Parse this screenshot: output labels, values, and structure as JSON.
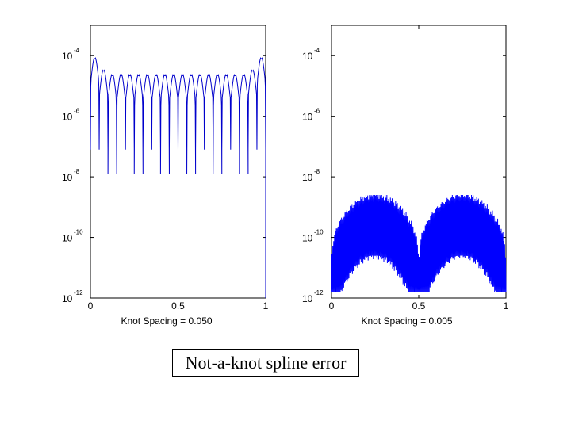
{
  "caption": "Not-a-knot spline error",
  "chart_data": [
    {
      "type": "line",
      "title": "",
      "xlabel": "Knot Spacing = 0.050",
      "ylabel": "",
      "yscale": "log",
      "xlim": [
        0,
        1
      ],
      "ylim": [
        1e-12,
        0.001
      ],
      "xticks": [
        0,
        0.5,
        1
      ],
      "xtick_labels": [
        "0",
        "0.5",
        "1"
      ],
      "yticks": [
        0.0001,
        1e-06,
        1e-08,
        1e-10,
        1e-12
      ],
      "ytick_labels": [
        {
          "base": "10",
          "exp": "-4"
        },
        {
          "base": "10",
          "exp": "-6"
        },
        {
          "base": "10",
          "exp": "-8"
        },
        {
          "base": "10",
          "exp": "-10"
        },
        {
          "base": "10",
          "exp": "-12"
        }
      ],
      "knot_spacing": 0.05,
      "series": [
        {
          "name": "error",
          "color": "#0000cc",
          "description": "error arches between knots, zero at each knot",
          "arch_peak_log10": {
            "ends": -4.05,
            "interior": -4.6
          },
          "dip_log10": {
            "base": -7.1,
            "deep": -7.9
          }
        }
      ]
    },
    {
      "type": "line",
      "title": "",
      "xlabel": "Knot Spacing = 0.005",
      "ylabel": "",
      "yscale": "log",
      "xlim": [
        0,
        1
      ],
      "ylim": [
        1e-12,
        0.001
      ],
      "xticks": [
        0,
        0.5,
        1
      ],
      "xtick_labels": [
        "0",
        "0.5",
        "1"
      ],
      "yticks": [
        0.0001,
        1e-06,
        1e-08,
        1e-10,
        1e-12
      ],
      "ytick_labels": [
        {
          "base": "10",
          "exp": "-4"
        },
        {
          "base": "10",
          "exp": "-6"
        },
        {
          "base": "10",
          "exp": "-8"
        },
        {
          "base": "10",
          "exp": "-10"
        },
        {
          "base": "10",
          "exp": "-12"
        }
      ],
      "knot_spacing": 0.005,
      "series": [
        {
          "name": "error",
          "color": "#0000ff",
          "description": "dense oscillating error, two lobes with minima near x=0, 0.5, 1",
          "envelope_peak_log10": -8.7,
          "lobe_minimum_log10": -11.5,
          "dip_depth_log10": 2.0
        }
      ]
    }
  ]
}
